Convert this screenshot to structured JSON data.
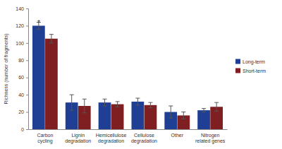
{
  "chart_data": {
    "type": "bar",
    "y_label": "Richness (number of fragments)",
    "categories": [
      "Carbon cycling",
      "Lignin degradation",
      "Hemicellulose degradation",
      "Cellulose degradation",
      "Other",
      "Nitrogen related genes"
    ],
    "series": [
      {
        "name": "Long-term",
        "color": "#1f3f94",
        "values": [
          120,
          31,
          31,
          32,
          20,
          22
        ],
        "errors": [
          4,
          9,
          4,
          4,
          7,
          2
        ]
      },
      {
        "name": "Short-term",
        "color": "#7f1f22",
        "values": [
          105,
          27,
          29,
          28,
          16,
          26
        ],
        "errors": [
          5,
          8,
          3,
          3,
          4,
          5
        ]
      }
    ],
    "annotations": [
      {
        "text": "*",
        "category": "Carbon cycling"
      }
    ],
    "ylim": [
      0,
      140
    ],
    "yticks": [
      0,
      20,
      40,
      60,
      80,
      100,
      120,
      140
    ],
    "grid": false,
    "legend": "right"
  }
}
